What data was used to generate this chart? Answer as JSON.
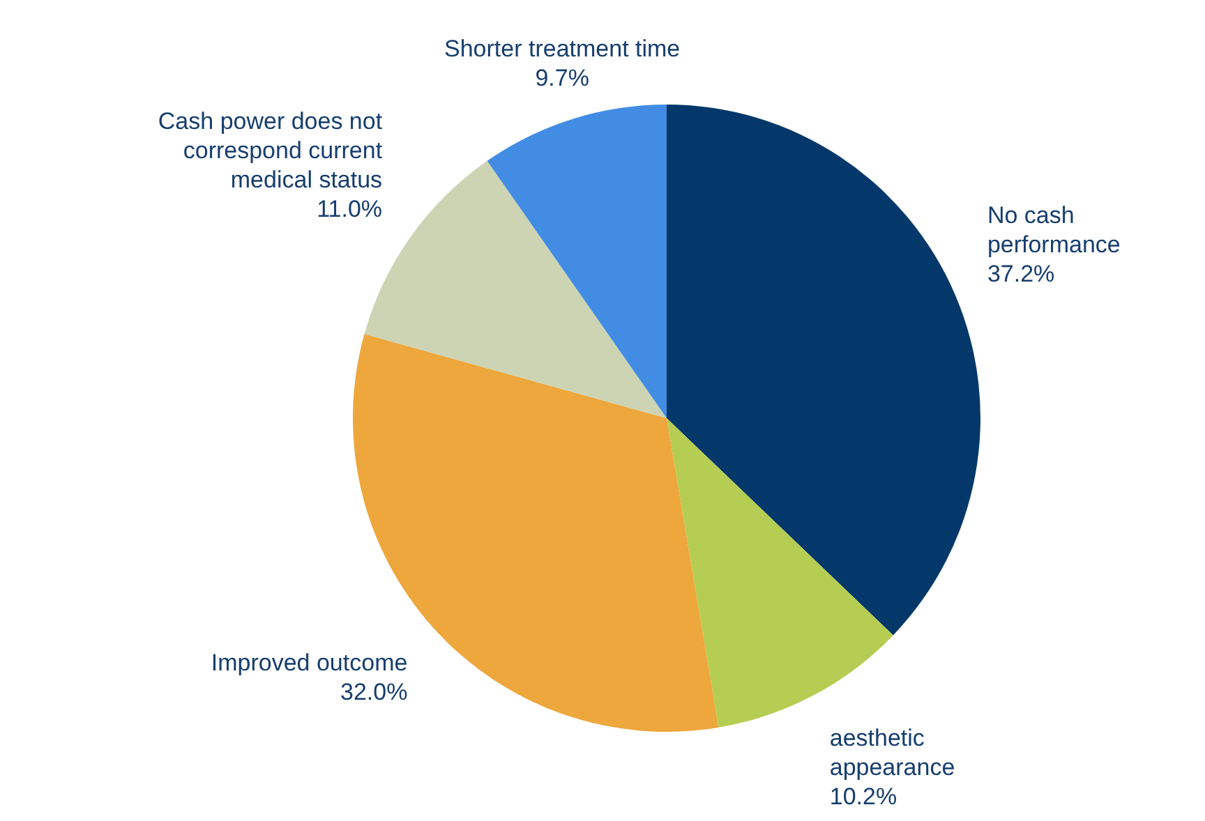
{
  "chart_data": {
    "type": "pie",
    "categories": [
      "No cash performance",
      "aesthetic appearance",
      "Improved outcome",
      "Cash power does not correspond current medical status",
      "Shorter treatment time"
    ],
    "values": [
      37.2,
      10.2,
      32.0,
      11.0,
      9.7
    ],
    "colors": [
      "#04386a",
      "#b5cd52",
      "#eda73c",
      "#cdd4b4",
      "#428de3"
    ],
    "value_labels": [
      "37.2%",
      "10.2%",
      "32.0%",
      "11.0%",
      "9.7%"
    ]
  }
}
